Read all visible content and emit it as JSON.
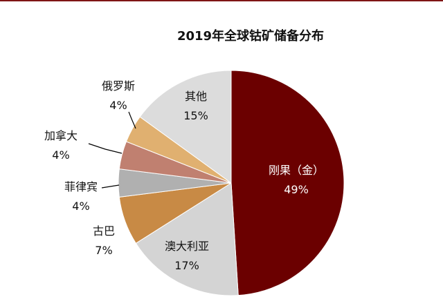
{
  "chart_data": {
    "type": "pie",
    "title": "2019年全球钴矿储备分布",
    "categories": [
      "刚果（金）",
      "澳大利亚",
      "古巴",
      "菲律宾",
      "加拿大",
      "俄罗斯",
      "其他"
    ],
    "values": [
      49,
      17,
      7,
      4,
      4,
      4,
      15
    ],
    "value_suffix": "%",
    "colors": [
      "#6b0000",
      "#d4d4d4",
      "#c88a45",
      "#b0b0b0",
      "#c08070",
      "#e0b070",
      "#dcdcdc"
    ],
    "start_angle_deg": 0,
    "direction": "clockwise",
    "legend": "none"
  }
}
